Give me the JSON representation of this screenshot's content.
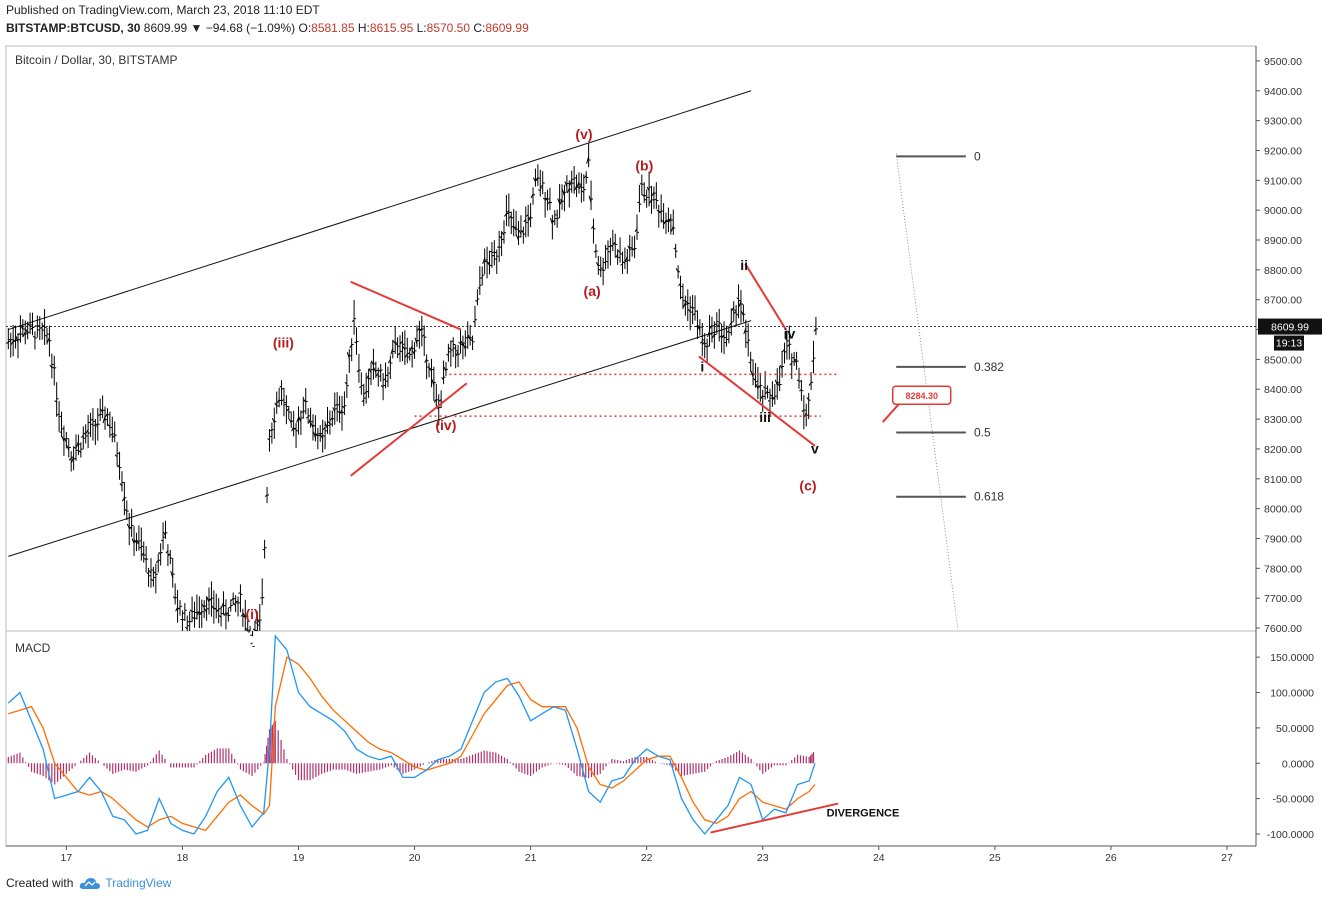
{
  "header": {
    "published": "Published on TradingView.com, March 23, 2018 11:10 EDT",
    "symbol": "BITSTAMP:BTCUSD, 30",
    "last": "8609.99",
    "change": "▼ −94.68 (−1.09%)",
    "o_label": "O:",
    "o_value": "8581.85",
    "h_label": "H:",
    "h_value": "8615.95",
    "l_label": "L:",
    "l_value": "8570.50",
    "c_label": "C:",
    "c_value": "8609.99"
  },
  "footer": {
    "created_with": "Created with",
    "brand": "TradingView"
  },
  "colors": {
    "wave_label": "#b71c1c",
    "annotation": "#e53935",
    "macd_line": "#2196f3",
    "signal_line": "#ff6d00",
    "histogram": "#b0306a",
    "price_bar": "#000000"
  },
  "chart_data": [
    {
      "type": "ohlc",
      "title": "Bitcoin / Dollar, 30, BITSTAMP",
      "x_tick_labels": [
        "17",
        "18",
        "19",
        "20",
        "21",
        "22",
        "23",
        "24",
        "25",
        "26",
        "27"
      ],
      "y_tick_labels": [
        "9500.00",
        "9400.00",
        "9300.00",
        "9200.00",
        "9100.00",
        "9000.00",
        "8900.00",
        "8800.00",
        "8700.00",
        "8600.00",
        "8500.00",
        "8400.00",
        "8300.00",
        "8200.00",
        "8100.00",
        "8000.00",
        "7900.00",
        "7800.00",
        "7700.00",
        "7600.00"
      ],
      "ylim": [
        7590,
        9550
      ],
      "xlim": [
        16.48,
        27.25
      ],
      "last_price_label": "8609.99",
      "countdown_label": "19:13",
      "price_path": [
        [
          16.5,
          8560
        ],
        [
          16.65,
          8600
        ],
        [
          16.85,
          8580
        ],
        [
          16.95,
          8290
        ],
        [
          17.05,
          8180
        ],
        [
          17.2,
          8260
        ],
        [
          17.35,
          8320
        ],
        [
          17.45,
          8180
        ],
        [
          17.55,
          7930
        ],
        [
          17.65,
          7860
        ],
        [
          17.75,
          7750
        ],
        [
          17.85,
          7930
        ],
        [
          17.95,
          7680
        ],
        [
          18.05,
          7620
        ],
        [
          18.2,
          7690
        ],
        [
          18.35,
          7650
        ],
        [
          18.5,
          7690
        ],
        [
          18.6,
          7560
        ],
        [
          18.68,
          7620
        ],
        [
          18.75,
          8250
        ],
        [
          18.85,
          8400
        ],
        [
          18.95,
          8250
        ],
        [
          19.05,
          8350
        ],
        [
          19.2,
          8220
        ],
        [
          19.3,
          8320
        ],
        [
          19.4,
          8350
        ],
        [
          19.48,
          8650
        ],
        [
          19.55,
          8370
        ],
        [
          19.65,
          8470
        ],
        [
          19.75,
          8420
        ],
        [
          19.85,
          8560
        ],
        [
          19.95,
          8500
        ],
        [
          20.05,
          8600
        ],
        [
          20.15,
          8450
        ],
        [
          20.2,
          8320
        ],
        [
          20.3,
          8520
        ],
        [
          20.4,
          8540
        ],
        [
          20.5,
          8560
        ],
        [
          20.58,
          8800
        ],
        [
          20.7,
          8850
        ],
        [
          20.8,
          8990
        ],
        [
          20.9,
          8900
        ],
        [
          21.0,
          8990
        ],
        [
          21.05,
          9100
        ],
        [
          21.15,
          9050
        ],
        [
          21.2,
          8960
        ],
        [
          21.35,
          9110
        ],
        [
          21.45,
          9060
        ],
        [
          21.5,
          9150
        ],
        [
          21.55,
          8900
        ],
        [
          21.6,
          8790
        ],
        [
          21.7,
          8900
        ],
        [
          21.8,
          8820
        ],
        [
          21.9,
          8880
        ],
        [
          21.95,
          9070
        ],
        [
          22.05,
          9050
        ],
        [
          22.15,
          8980
        ],
        [
          22.22,
          8980
        ],
        [
          22.3,
          8700
        ],
        [
          22.4,
          8670
        ],
        [
          22.5,
          8540
        ],
        [
          22.6,
          8620
        ],
        [
          22.7,
          8560
        ],
        [
          22.8,
          8720
        ],
        [
          22.85,
          8590
        ],
        [
          22.95,
          8400
        ],
        [
          23.05,
          8370
        ],
        [
          23.15,
          8420
        ],
        [
          23.2,
          8550
        ],
        [
          23.3,
          8480
        ],
        [
          23.38,
          8290
        ],
        [
          23.42,
          8450
        ],
        [
          23.46,
          8610
        ]
      ],
      "wave_labels": [
        {
          "text": "(i)",
          "x": 18.6,
          "y": 7630
        },
        {
          "text": "(iii)",
          "x": 18.87,
          "y": 8540
        },
        {
          "text": "(iv)",
          "x": 20.27,
          "y": 8264
        },
        {
          "text": "(v)",
          "x": 21.46,
          "y": 9239
        },
        {
          "text": "(a)",
          "x": 21.53,
          "y": 8712
        },
        {
          "text": "(b)",
          "x": 21.98,
          "y": 9133
        },
        {
          "text": "(c)",
          "x": 23.39,
          "y": 8060
        },
        {
          "text": "i",
          "x": 22.48,
          "y": 8460
        },
        {
          "text": "ii",
          "x": 22.84,
          "y": 8800
        },
        {
          "text": "iii",
          "x": 23.02,
          "y": 8290
        },
        {
          "text": "iv",
          "x": 23.23,
          "y": 8570
        },
        {
          "text": "v",
          "x": 23.45,
          "y": 8185
        }
      ],
      "fibonacci": [
        {
          "label": "0",
          "value": 9180
        },
        {
          "label": "0.382",
          "value": 8475
        },
        {
          "label": "0.5",
          "value": 8255
        },
        {
          "label": "0.618",
          "value": 8040
        }
      ],
      "price_callout": "8284.30"
    },
    {
      "type": "line",
      "title": "MACD",
      "y_tick_labels": [
        "150.0000",
        "100.0000",
        "50.0000",
        "0.0000",
        "-50.0000",
        "-100.0000"
      ],
      "ylim": [
        -117,
        187
      ],
      "annotation": "DIVERGENCE",
      "x": [
        16.5,
        16.6,
        16.7,
        16.8,
        16.9,
        17.0,
        17.1,
        17.2,
        17.3,
        17.4,
        17.5,
        17.6,
        17.7,
        17.8,
        17.9,
        18.0,
        18.1,
        18.2,
        18.3,
        18.4,
        18.5,
        18.6,
        18.7,
        18.75,
        18.8,
        18.9,
        19.0,
        19.1,
        19.2,
        19.3,
        19.4,
        19.5,
        19.6,
        19.7,
        19.8,
        19.9,
        20.0,
        20.1,
        20.2,
        20.3,
        20.4,
        20.5,
        20.6,
        20.7,
        20.8,
        20.9,
        21.0,
        21.1,
        21.2,
        21.3,
        21.4,
        21.5,
        21.6,
        21.7,
        21.8,
        21.9,
        22.0,
        22.1,
        22.2,
        22.3,
        22.4,
        22.5,
        22.6,
        22.7,
        22.8,
        22.9,
        23.0,
        23.1,
        23.2,
        23.3,
        23.4,
        23.45
      ],
      "series": [
        {
          "name": "MACD",
          "values": [
            85,
            100,
            60,
            20,
            -50,
            -45,
            -40,
            -20,
            -40,
            -75,
            -80,
            -100,
            -95,
            -50,
            -85,
            -95,
            -100,
            -75,
            -40,
            -20,
            -60,
            -90,
            -70,
            20,
            180,
            160,
            100,
            80,
            70,
            60,
            45,
            20,
            10,
            5,
            10,
            -20,
            -20,
            -10,
            5,
            10,
            20,
            60,
            100,
            115,
            120,
            95,
            60,
            70,
            80,
            75,
            20,
            -40,
            -55,
            -25,
            -20,
            5,
            20,
            10,
            5,
            -50,
            -80,
            -100,
            -80,
            -60,
            -20,
            -30,
            -80,
            -65,
            -70,
            -30,
            -25,
            0
          ],
          "color": "#2196f3"
        },
        {
          "name": "Signal",
          "values": [
            70,
            75,
            80,
            50,
            0,
            -20,
            -40,
            -45,
            -40,
            -50,
            -65,
            -80,
            -90,
            -80,
            -75,
            -85,
            -90,
            -95,
            -75,
            -55,
            -45,
            -60,
            -72,
            -60,
            80,
            150,
            140,
            120,
            95,
            75,
            60,
            45,
            30,
            20,
            15,
            5,
            -5,
            -10,
            -5,
            0,
            10,
            40,
            70,
            90,
            110,
            115,
            90,
            80,
            80,
            80,
            50,
            -5,
            -30,
            -35,
            -25,
            -10,
            5,
            10,
            10,
            -20,
            -55,
            -80,
            -85,
            -75,
            -50,
            -40,
            -55,
            -60,
            -65,
            -50,
            -40,
            -30
          ],
          "color": "#ff6d00"
        }
      ]
    }
  ]
}
